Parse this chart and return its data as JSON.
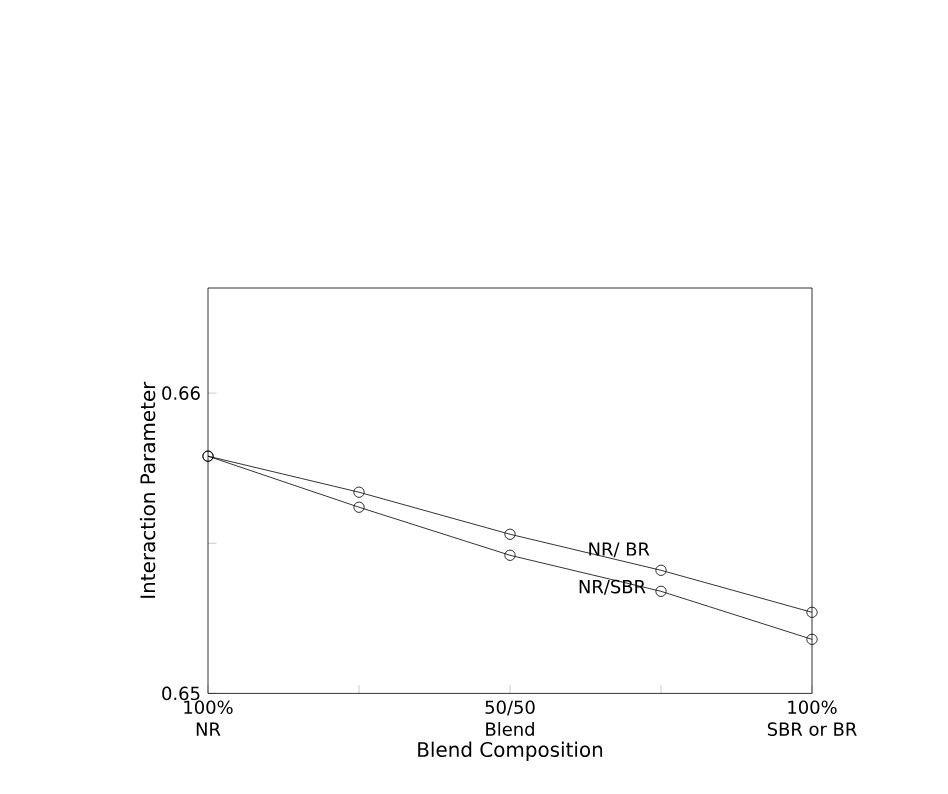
{
  "chart_data": {
    "type": "line",
    "xlabel": "Blend Composition",
    "ylabel": "Interaction Parameter",
    "categories": [
      "100%\nNR",
      null,
      "50/50\nBlend",
      null,
      "100%\nSBR or BR"
    ],
    "series": [
      {
        "name": "NR/ BR",
        "color": "#000000",
        "values": [
          0.6579,
          0.6567,
          0.6553,
          0.6541,
          0.6527
        ]
      },
      {
        "name": "NR/SBR",
        "color": "#000000",
        "values": [
          0.6579,
          0.6562,
          0.6546,
          0.6534,
          0.6518
        ]
      }
    ],
    "ylim": [
      0.65,
      0.6635
    ],
    "yticks": [
      0.65,
      {
        "value": 0.655,
        "label": null
      },
      0.66
    ],
    "marker": "circle",
    "line_style": "solid",
    "grid": false,
    "legend": false
  }
}
